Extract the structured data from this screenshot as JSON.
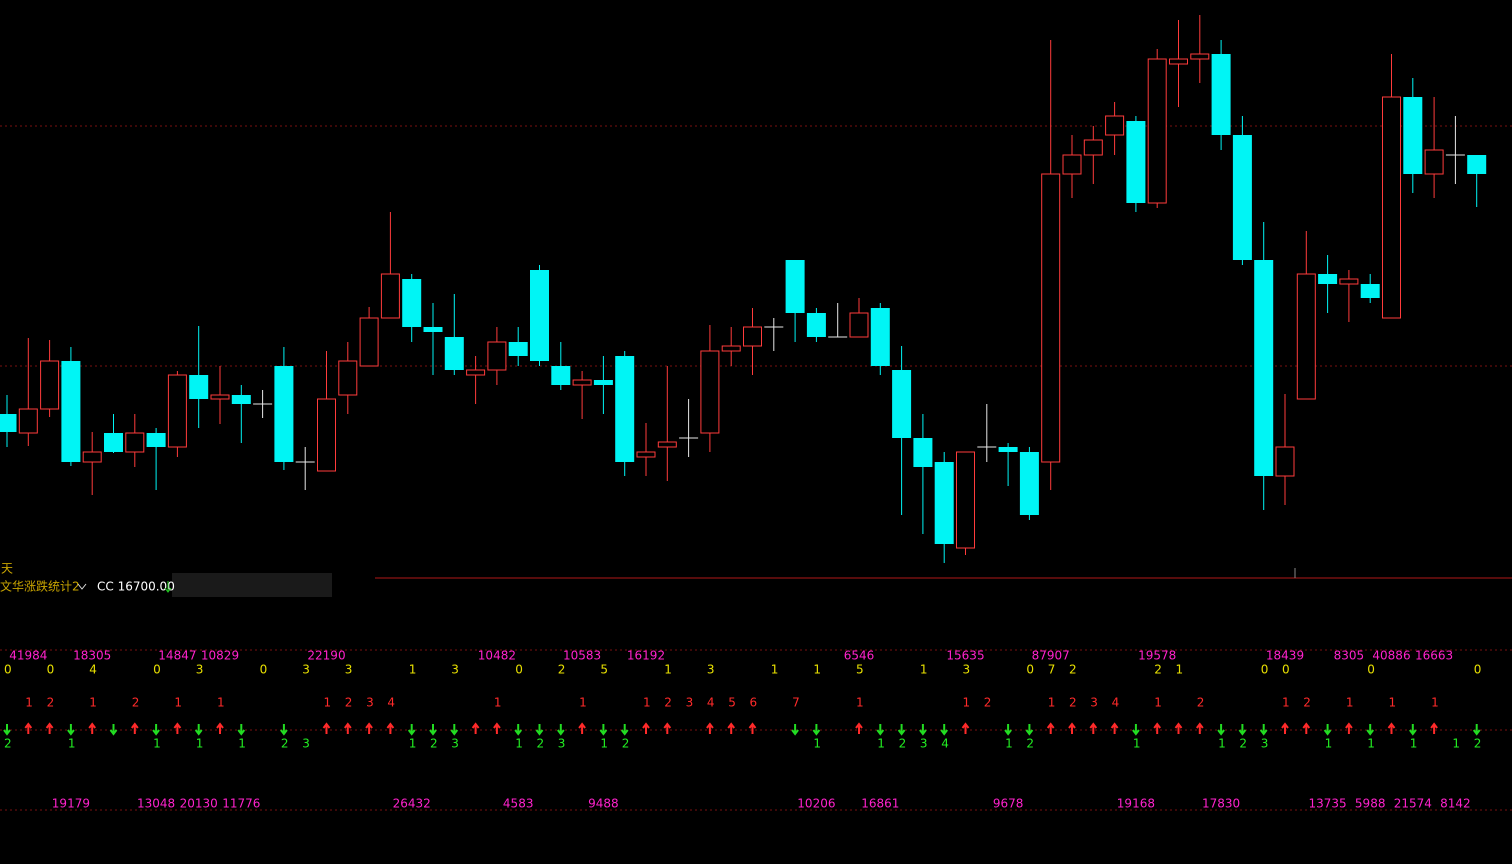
{
  "chart_data": {
    "type": "candlestick",
    "ylim": [
      0,
      578
    ],
    "up_color": "#ff3b3b",
    "down_color": "#00f5f5",
    "flat_color": "#e8e8e8",
    "open": [
      164,
      145,
      169,
      217,
      116,
      145,
      126,
      145,
      131,
      203,
      179,
      183,
      174,
      212,
      116,
      107,
      183,
      212,
      260,
      299,
      251,
      241,
      203,
      208,
      236,
      308,
      212,
      193,
      198,
      222,
      121,
      131,
      140,
      145,
      227,
      232,
      251,
      318,
      265,
      241,
      241,
      270,
      208,
      140,
      116,
      30,
      131,
      131,
      126,
      116,
      404,
      423,
      443,
      457,
      375,
      514,
      519,
      524,
      443,
      318,
      102,
      179,
      304,
      294,
      294,
      260,
      481,
      404,
      423,
      423
    ],
    "high": [
      183,
      240,
      238,
      231,
      146,
      164,
      164,
      150,
      207,
      252,
      212,
      193,
      188,
      231,
      131,
      227,
      236,
      271,
      366,
      304,
      275,
      284,
      222,
      251,
      251,
      313,
      236,
      207,
      222,
      227,
      155,
      212,
      179,
      253,
      251,
      270,
      260,
      318,
      270,
      275,
      280,
      275,
      232,
      164,
      126,
      126,
      174,
      135,
      131,
      538,
      443,
      452,
      476,
      462,
      529,
      558,
      563,
      538,
      462,
      356,
      184,
      347,
      323,
      308,
      304,
      524,
      500,
      481,
      462,
      423
    ],
    "low": [
      131,
      132,
      161,
      112,
      83,
      125,
      111,
      88,
      121,
      150,
      154,
      135,
      160,
      108,
      88,
      107,
      164,
      212,
      260,
      236,
      203,
      203,
      174,
      193,
      212,
      212,
      188,
      159,
      164,
      102,
      102,
      97,
      121,
      126,
      212,
      203,
      227,
      236,
      236,
      241,
      241,
      203,
      63,
      44,
      15,
      23,
      116,
      92,
      58,
      88,
      380,
      394,
      423,
      366,
      370,
      471,
      495,
      428,
      313,
      68,
      73,
      179,
      265,
      256,
      275,
      260,
      385,
      380,
      394,
      371
    ],
    "close": [
      146,
      169,
      217,
      116,
      126,
      126,
      145,
      131,
      203,
      179,
      183,
      174,
      174,
      116,
      116,
      179,
      217,
      260,
      304,
      251,
      246,
      208,
      208,
      236,
      222,
      217,
      193,
      198,
      193,
      116,
      126,
      136,
      140,
      227,
      232,
      251,
      251,
      265,
      241,
      241,
      265,
      212,
      140,
      111,
      34,
      126,
      131,
      126,
      63,
      404,
      423,
      438,
      462,
      375,
      519,
      519,
      524,
      443,
      318,
      102,
      131,
      304,
      294,
      299,
      280,
      481,
      404,
      428,
      423,
      404
    ]
  },
  "header": {
    "period": "天",
    "indicator": "文华涨跌统计2",
    "cc": "CC 16700.00"
  },
  "indicator": {
    "top_volume": [
      null,
      41984,
      null,
      null,
      18305,
      null,
      null,
      null,
      14847,
      null,
      10829,
      null,
      null,
      null,
      null,
      22190,
      null,
      null,
      null,
      null,
      null,
      null,
      null,
      10482,
      null,
      null,
      null,
      10583,
      null,
      null,
      16192,
      null,
      null,
      null,
      null,
      null,
      null,
      null,
      null,
      null,
      6546,
      null,
      null,
      null,
      null,
      15635,
      null,
      null,
      null,
      87907,
      null,
      null,
      null,
      null,
      19578,
      null,
      null,
      null,
      null,
      null,
      18439,
      null,
      null,
      8305,
      null,
      40886,
      null,
      16663,
      null,
      null
    ],
    "streak_reset": [
      0,
      null,
      0,
      null,
      4,
      null,
      null,
      0,
      null,
      3,
      null,
      null,
      0,
      null,
      3,
      null,
      3,
      null,
      null,
      1,
      null,
      3,
      null,
      null,
      0,
      null,
      2,
      null,
      5,
      null,
      null,
      1,
      null,
      3,
      null,
      null,
      1,
      null,
      1,
      null,
      5,
      null,
      null,
      1,
      null,
      3,
      null,
      null,
      0,
      7,
      2,
      null,
      null,
      null,
      2,
      1,
      null,
      null,
      null,
      0,
      0,
      null,
      null,
      null,
      0,
      null,
      null,
      null,
      null,
      0
    ],
    "up_count": [
      null,
      1,
      2,
      null,
      1,
      null,
      2,
      null,
      1,
      null,
      1,
      null,
      null,
      null,
      null,
      1,
      2,
      3,
      4,
      null,
      null,
      null,
      null,
      1,
      null,
      null,
      null,
      1,
      null,
      null,
      1,
      2,
      3,
      4,
      5,
      6,
      null,
      7,
      null,
      null,
      1,
      null,
      null,
      null,
      null,
      1,
      2,
      null,
      null,
      1,
      2,
      3,
      4,
      null,
      1,
      null,
      2,
      null,
      null,
      null,
      1,
      2,
      null,
      1,
      null,
      1,
      null,
      1,
      null,
      null
    ],
    "down_count": [
      2,
      null,
      null,
      1,
      null,
      null,
      null,
      1,
      null,
      1,
      null,
      1,
      null,
      2,
      3,
      null,
      null,
      null,
      null,
      1,
      2,
      3,
      null,
      null,
      1,
      2,
      3,
      null,
      1,
      2,
      null,
      null,
      null,
      null,
      null,
      null,
      null,
      null,
      1,
      null,
      null,
      1,
      2,
      3,
      4,
      null,
      null,
      1,
      2,
      null,
      null,
      null,
      null,
      1,
      null,
      null,
      null,
      1,
      2,
      3,
      null,
      null,
      1,
      null,
      1,
      null,
      1,
      null,
      1,
      2
    ],
    "bottom_volume": [
      null,
      null,
      null,
      19179,
      null,
      null,
      null,
      13048,
      null,
      20130,
      null,
      11776,
      null,
      null,
      null,
      null,
      null,
      null,
      null,
      26432,
      null,
      null,
      null,
      null,
      4583,
      null,
      null,
      null,
      9488,
      null,
      null,
      null,
      null,
      null,
      null,
      null,
      null,
      null,
      10206,
      null,
      null,
      16861,
      null,
      null,
      null,
      null,
      null,
      9678,
      null,
      null,
      null,
      null,
      null,
      19168,
      null,
      null,
      null,
      17830,
      null,
      null,
      null,
      null,
      13735,
      null,
      5988,
      null,
      21574,
      null,
      8142,
      null
    ]
  }
}
